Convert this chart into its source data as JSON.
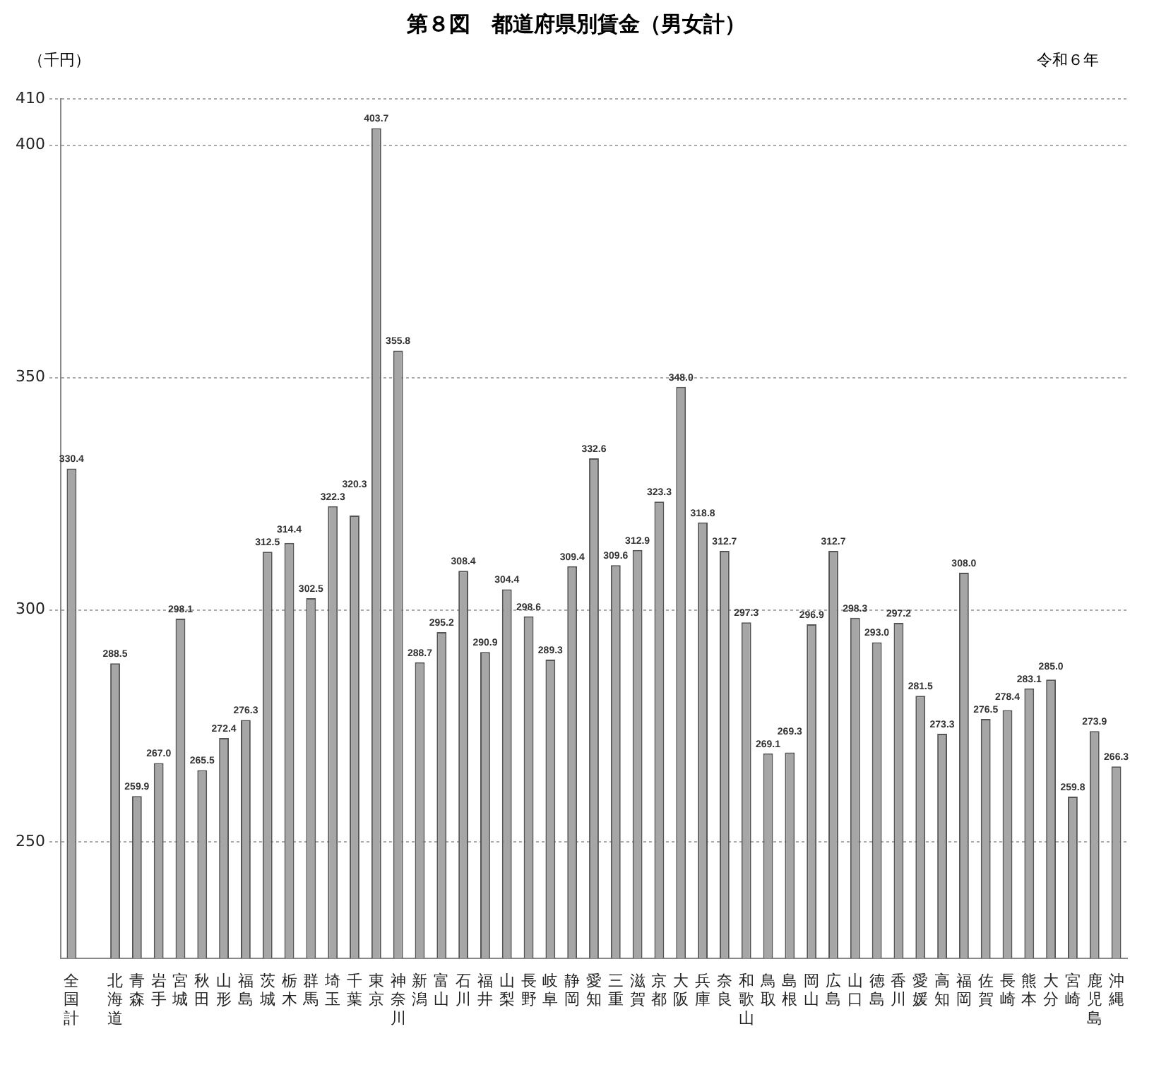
{
  "chart_data": {
    "type": "bar",
    "title": "第８図　都道府県別賃金（男女計）",
    "ylabel": "（千円）",
    "annotations": [
      "令和６年"
    ],
    "categories": [
      "全国計",
      null,
      "北海道",
      "青森",
      "岩手",
      "宮城",
      "秋田",
      "山形",
      "福島",
      "茨城",
      "栃木",
      "群馬",
      "埼玉",
      "千葉",
      "東京",
      "神奈川",
      "新潟",
      "富山",
      "石川",
      "福井",
      "山梨",
      "長野",
      "岐阜",
      "静岡",
      "愛知",
      "三重",
      "滋賀",
      "京都",
      "大阪",
      "兵庫",
      "奈良",
      "和歌山",
      "鳥取",
      "島根",
      "岡山",
      "広島",
      "山口",
      "徳島",
      "香川",
      "愛媛",
      "高知",
      "福岡",
      "佐賀",
      "長崎",
      "熊本",
      "大分",
      "宮崎",
      "鹿児島",
      "沖縄"
    ],
    "values": [
      330.4,
      null,
      288.5,
      259.9,
      267.0,
      298.1,
      265.5,
      272.4,
      276.3,
      312.5,
      314.4,
      302.5,
      322.3,
      320.3,
      403.7,
      355.8,
      288.7,
      295.2,
      308.4,
      290.9,
      304.4,
      298.6,
      289.3,
      309.4,
      332.6,
      309.6,
      312.9,
      323.3,
      348.0,
      318.8,
      312.7,
      297.3,
      269.1,
      269.3,
      296.9,
      312.7,
      298.3,
      293.0,
      297.2,
      281.5,
      273.3,
      308.0,
      276.5,
      278.4,
      283.1,
      285.0,
      259.8,
      273.9,
      266.3
    ],
    "value_labels": [
      "330.4",
      null,
      "288.5",
      "259.9",
      "267.0",
      "298.1",
      "265.5",
      "272.4",
      "276.3",
      "312.5",
      "314.4",
      "302.5",
      "322.3",
      "320.3",
      "403.7",
      "355.8",
      "288.7",
      "295.2",
      "308.4",
      "290.9",
      "304.4",
      "298.6",
      "289.3",
      "309.4",
      "332.6",
      "309.6",
      "312.9",
      "323.3",
      "348.0",
      "318.8",
      "312.7",
      "297.3",
      "269.1",
      "269.3",
      "296.9",
      "312.7",
      "298.3",
      "293.0",
      "297.2",
      "281.5",
      "273.3",
      "308.0",
      "276.5",
      "278.4",
      "283.1",
      "285.0",
      "259.8",
      "273.9",
      "266.3"
    ],
    "color": "#a6a6a6",
    "ylim": [
      225,
      410
    ],
    "yticks": [
      250,
      300,
      350,
      400,
      410
    ],
    "grid": "y",
    "legend": false
  }
}
